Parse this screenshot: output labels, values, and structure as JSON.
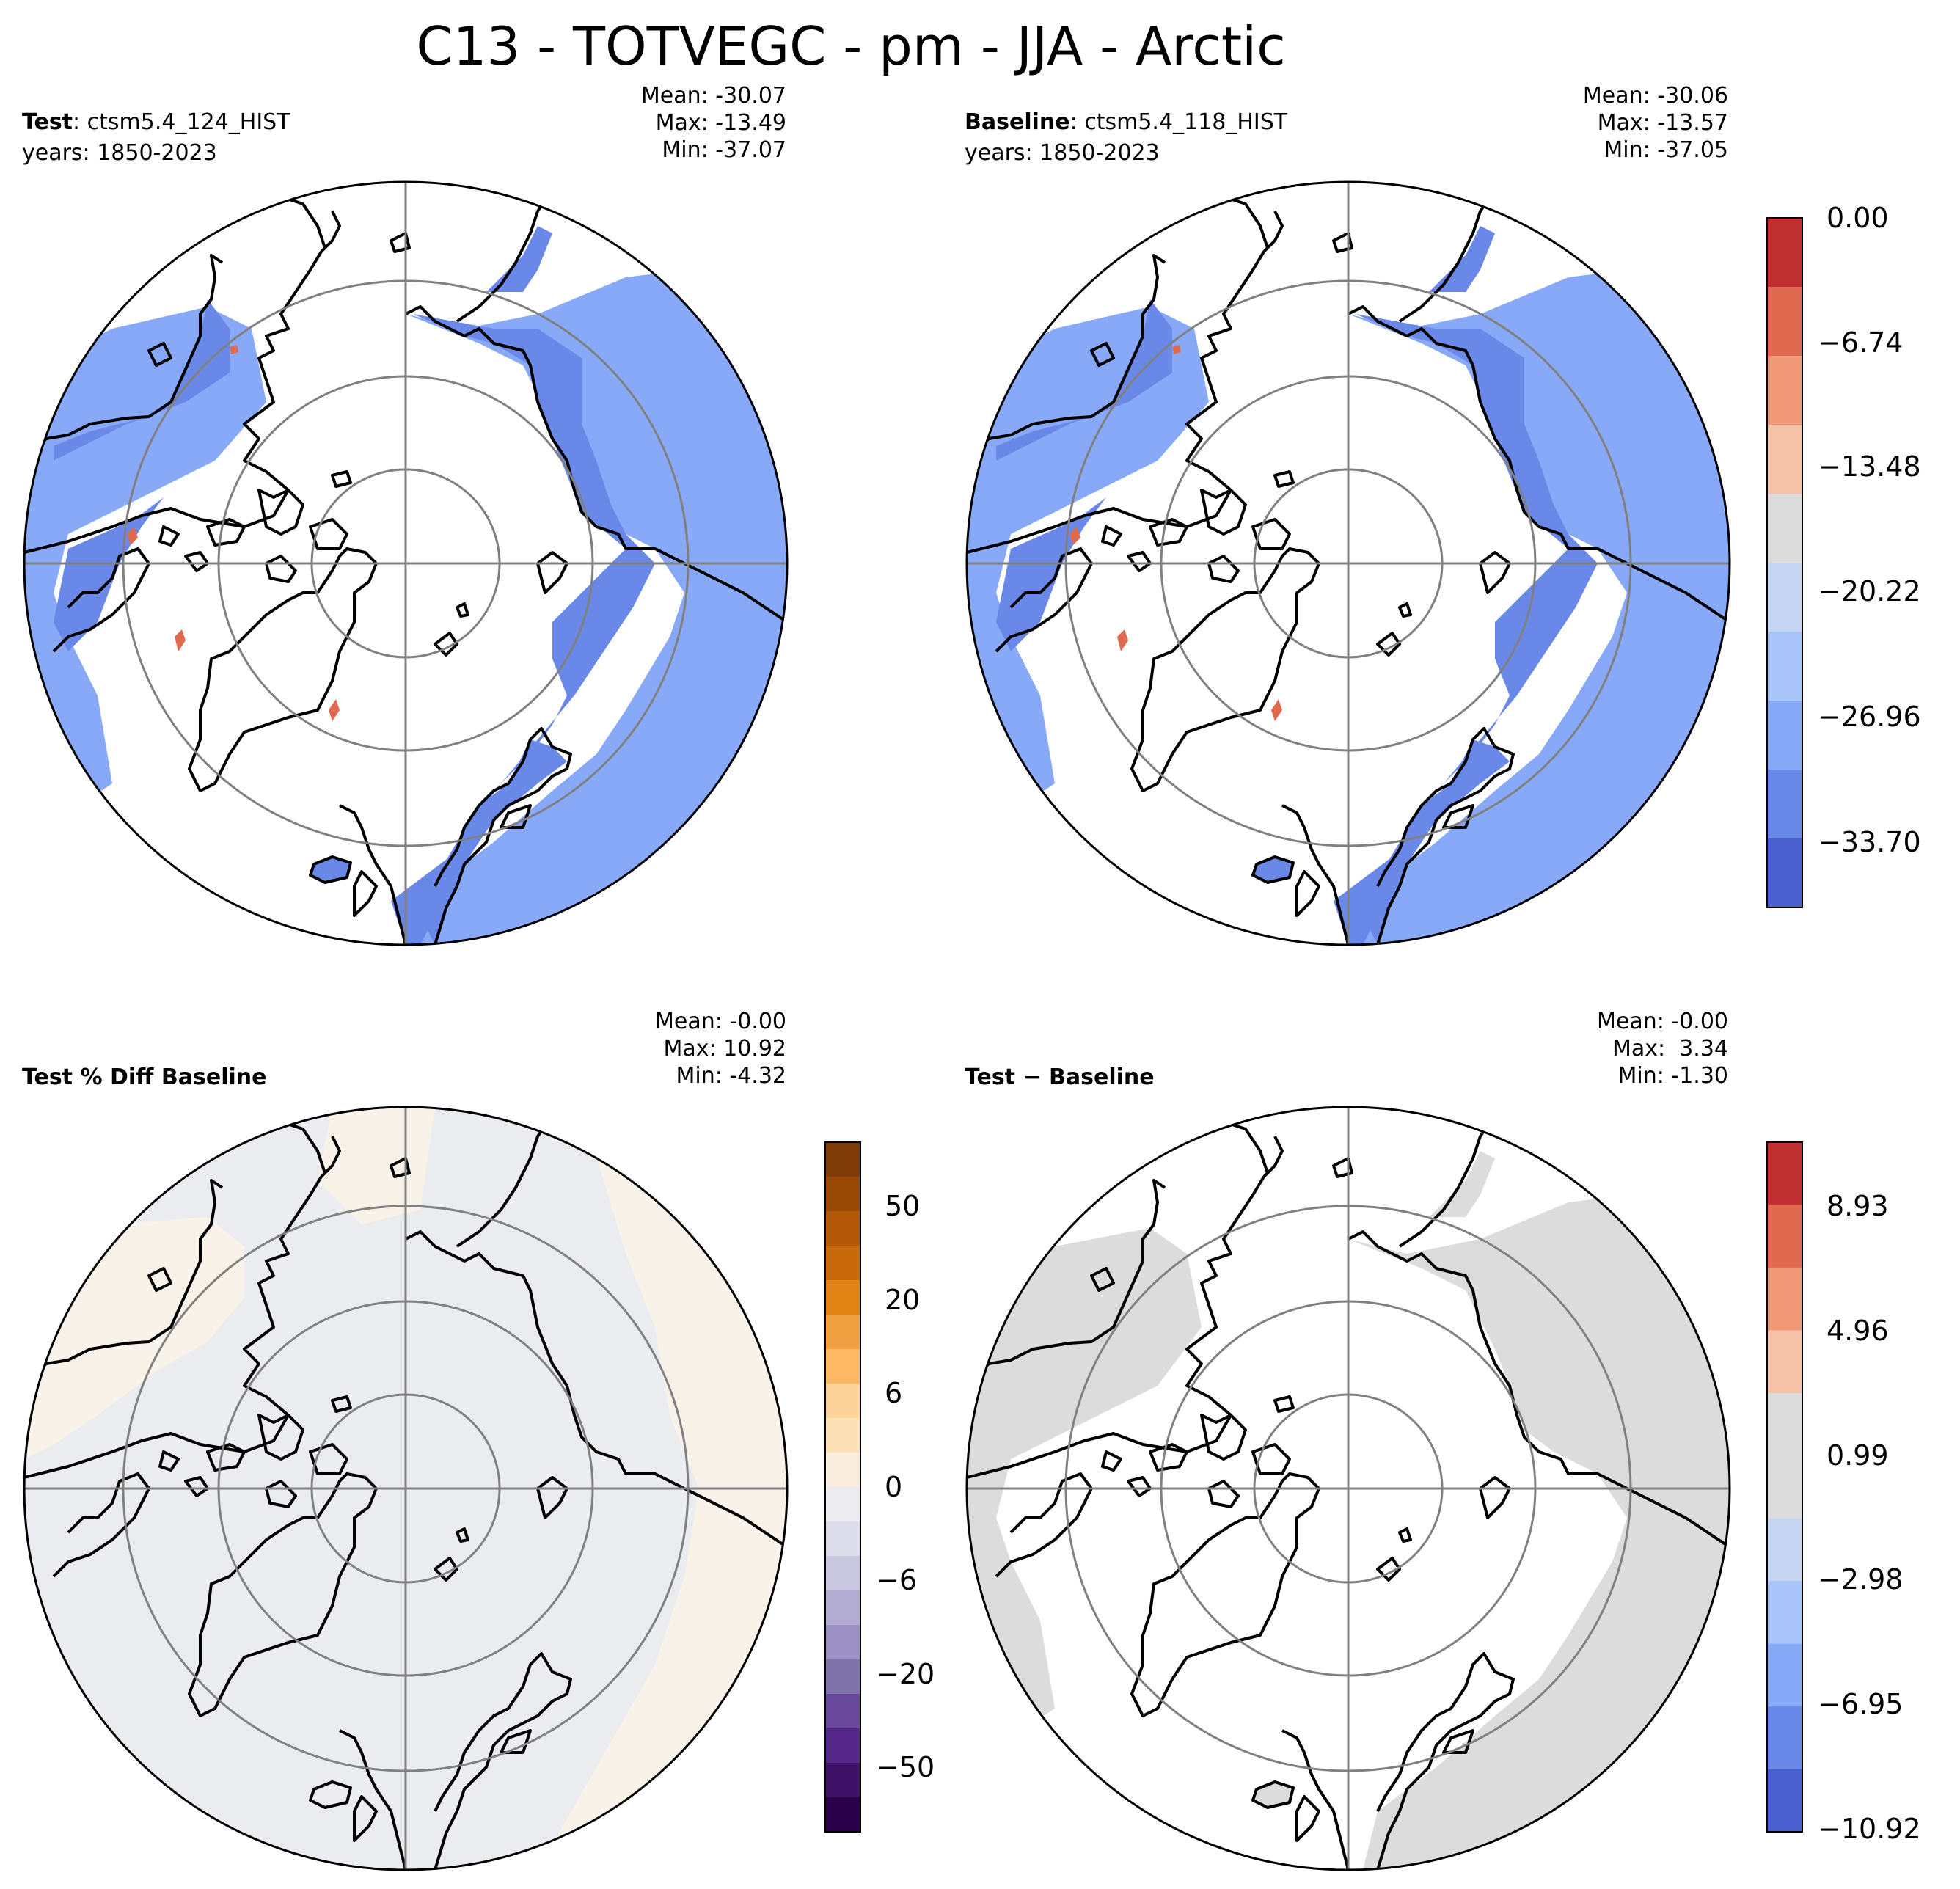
{
  "title": "C13 - TOTVEGC - pm - JJA - Arctic",
  "panels": {
    "test": {
      "label_bold": "Test",
      "label_rest": ": ctsm5.4_124_HIST",
      "years": "years: 1850-2023",
      "mean": "Mean: -30.07",
      "max": "Max: -13.49",
      "min": "Min: -37.07"
    },
    "baseline": {
      "label_bold": "Baseline",
      "label_rest": ": ctsm5.4_118_HIST",
      "years": "years: 1850-2023",
      "mean": "Mean: -30.06",
      "max": "Max: -13.57",
      "min": "Min: -37.05"
    },
    "pct_diff": {
      "label_bold": "Test % Diff Baseline",
      "mean": "Mean: -0.00",
      "max": "Max: 10.92",
      "min": "Min: -4.32"
    },
    "diff": {
      "label_bold": "Test − Baseline",
      "mean": "Mean: -0.00",
      "max": "Max:  3.34",
      "min": "Min: -1.30"
    }
  },
  "colorbars": {
    "main": {
      "ticks": [
        "0.00",
        "−6.74",
        "−13.48",
        "−20.22",
        "−26.96",
        "−33.70"
      ],
      "colors": [
        "#c03030",
        "#e06a50",
        "#f19878",
        "#f5c2a8",
        "#dcdcdc",
        "#c6d6f2",
        "#a8c4f8",
        "#88a8f8",
        "#6a88e8",
        "#4a5fd0"
      ]
    },
    "pct": {
      "ticks": [
        "50",
        "20",
        "6",
        "0",
        "−6",
        "−20",
        "−50"
      ],
      "colors": [
        "#7f3b08",
        "#9a4806",
        "#b35806",
        "#c86a0a",
        "#e08214",
        "#f0a040",
        "#fdb863",
        "#fdd29a",
        "#fee0b6",
        "#f9ede0",
        "#ebebf0",
        "#dcdcea",
        "#cac8e0",
        "#b2abd2",
        "#9d90c4",
        "#8073ac",
        "#694a9c",
        "#542788",
        "#3f1166",
        "#2d004b"
      ]
    },
    "diff": {
      "ticks": [
        "8.93",
        "4.96",
        "0.99",
        "−2.98",
        "−6.95",
        "−10.92"
      ],
      "colors": [
        "#c03030",
        "#e06a50",
        "#f19878",
        "#f5c2a8",
        "#dcdcdc",
        "#dcdcdc",
        "#c6d6f2",
        "#a8c4f8",
        "#88a8f8",
        "#6a88e8",
        "#4a5fd0"
      ]
    }
  },
  "map_colors": {
    "dark_blue": "#6a88e8",
    "light_blue": "#88a8f8",
    "red_patch": "#e06a50",
    "pct_land": "#ebecf0",
    "pct_ocean": "#f9f2e8",
    "diff_land": "#dcdcdc",
    "graticule": "#808080"
  }
}
